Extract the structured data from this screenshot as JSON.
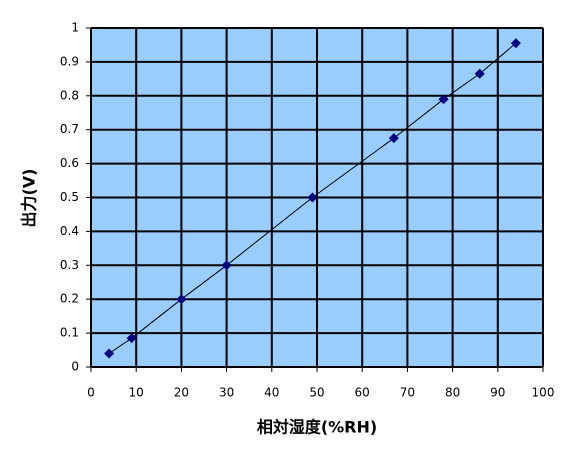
{
  "chart_data": {
    "type": "scatter",
    "x_label": "相対湿度(%RH)",
    "y_label": "出力(V)",
    "series": [
      {
        "color": "#000080",
        "x": [
          4,
          9,
          20,
          30,
          49,
          67,
          78,
          86,
          94
        ],
        "values": [
          0.04,
          0.085,
          0.2,
          0.3,
          0.5,
          0.675,
          0.79,
          0.865,
          0.955
        ]
      }
    ],
    "line_color": "#000000",
    "plot_background": "#99ccff",
    "xlim": [
      0,
      100
    ],
    "xticks": [
      0,
      10,
      20,
      30,
      40,
      50,
      60,
      70,
      80,
      90,
      100
    ],
    "ylim": [
      0,
      1
    ],
    "yticks": [
      0,
      0.1,
      0.2,
      0.3,
      0.4,
      0.5,
      0.6,
      0.7,
      0.8,
      0.9,
      1
    ],
    "grid": true
  }
}
